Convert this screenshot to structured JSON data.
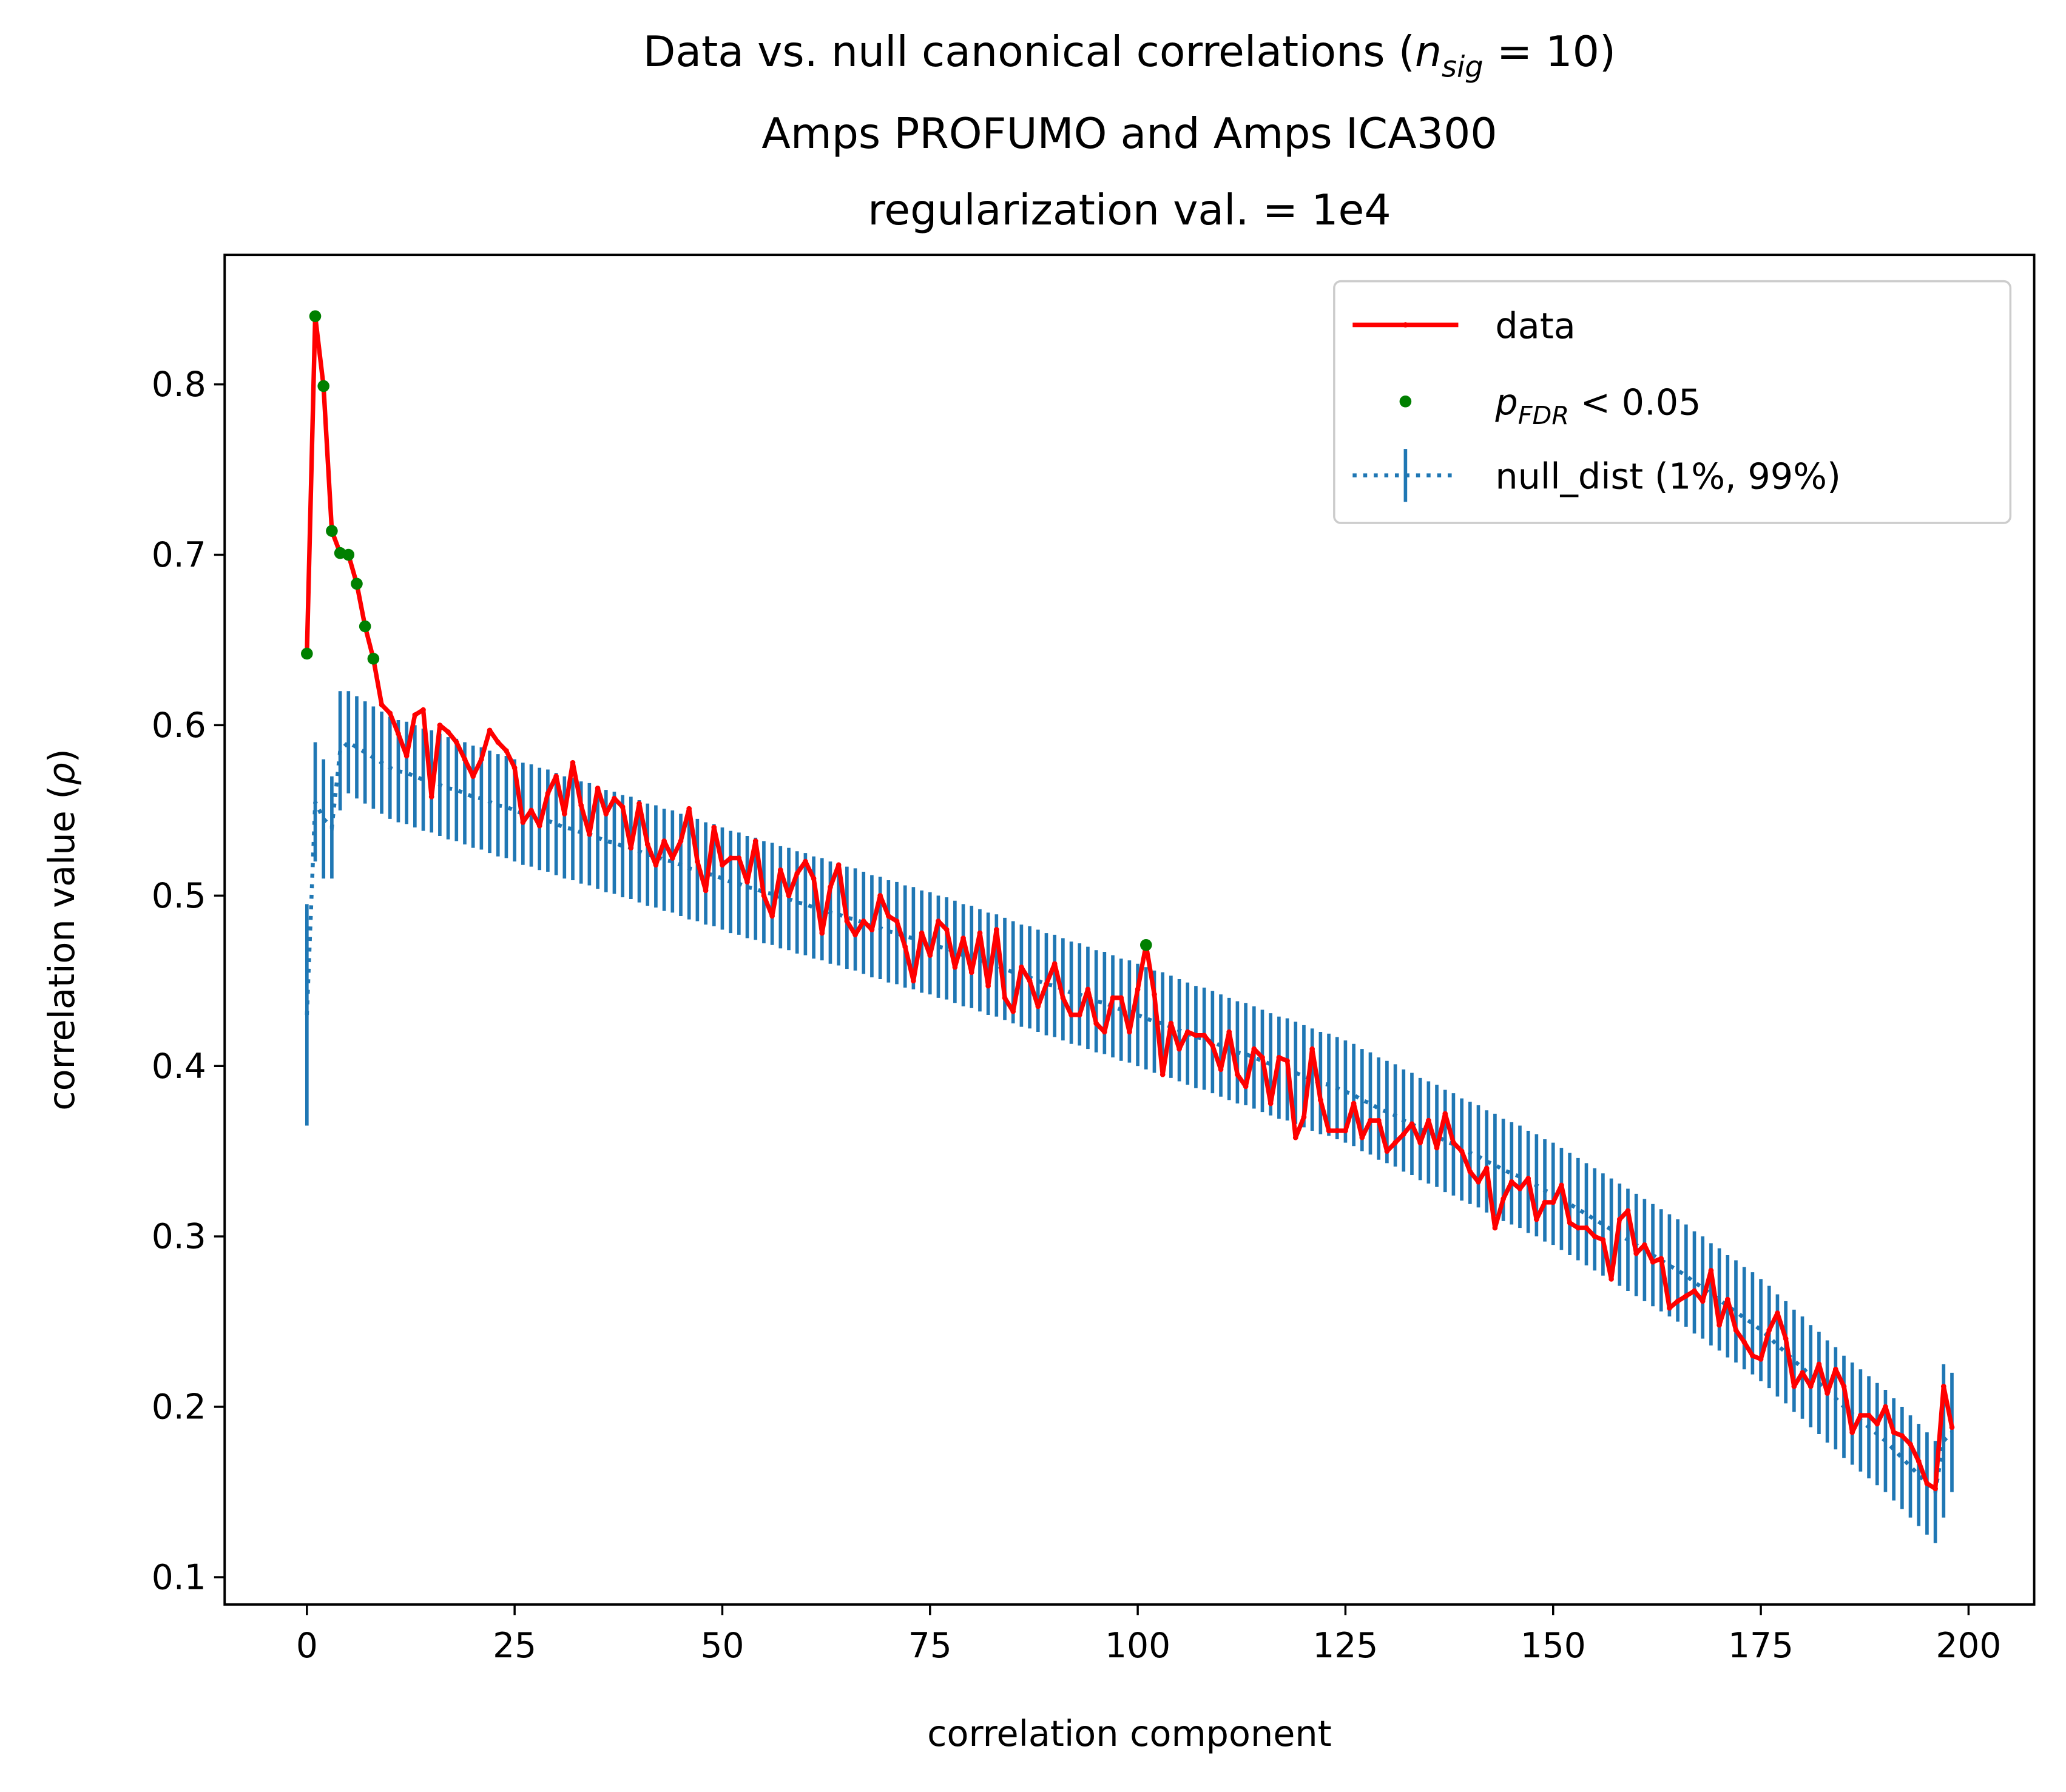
{
  "chart_data": {
    "type": "line",
    "title": {
      "line1": [
        "Data vs. null canonical correlations (",
        "n",
        "sig",
        " = 10)"
      ],
      "line2": "Amps PROFUMO and Amps ICA300",
      "line3": "regularization val. = 1e4"
    },
    "xlabel": "correlation component",
    "ylabel": [
      "correlation value (",
      "ρ",
      ")"
    ],
    "xlim": [
      -9.9,
      207.9
    ],
    "ylim": [
      0.084,
      0.876
    ],
    "xticks": [
      0,
      25,
      50,
      75,
      100,
      125,
      150,
      175,
      200
    ],
    "yticks": [
      0.1,
      0.2,
      0.3,
      0.4,
      0.5,
      0.6,
      0.7,
      0.8
    ],
    "legend": "upper right",
    "x": [
      0,
      1,
      2,
      3,
      4,
      5,
      6,
      7,
      8,
      9,
      10,
      11,
      12,
      13,
      14,
      15,
      16,
      17,
      18,
      19,
      20,
      21,
      22,
      23,
      24,
      25,
      26,
      27,
      28,
      29,
      30,
      31,
      32,
      33,
      34,
      35,
      36,
      37,
      38,
      39,
      40,
      41,
      42,
      43,
      44,
      45,
      46,
      47,
      48,
      49,
      50,
      51,
      52,
      53,
      54,
      55,
      56,
      57,
      58,
      59,
      60,
      61,
      62,
      63,
      64,
      65,
      66,
      67,
      68,
      69,
      70,
      71,
      72,
      73,
      74,
      75,
      76,
      77,
      78,
      79,
      80,
      81,
      82,
      83,
      84,
      85,
      86,
      87,
      88,
      89,
      90,
      91,
      92,
      93,
      94,
      95,
      96,
      97,
      98,
      99,
      100,
      101,
      102,
      103,
      104,
      105,
      106,
      107,
      108,
      109,
      110,
      111,
      112,
      113,
      114,
      115,
      116,
      117,
      118,
      119,
      120,
      121,
      122,
      123,
      124,
      125,
      126,
      127,
      128,
      129,
      130,
      131,
      132,
      133,
      134,
      135,
      136,
      137,
      138,
      139,
      140,
      141,
      142,
      143,
      144,
      145,
      146,
      147,
      148,
      149,
      150,
      151,
      152,
      153,
      154,
      155,
      156,
      157,
      158,
      159,
      160,
      161,
      162,
      163,
      164,
      165,
      166,
      167,
      168,
      169,
      170,
      171,
      172,
      173,
      174,
      175,
      176,
      177,
      178,
      179,
      180,
      181,
      182,
      183,
      184,
      185,
      186,
      187,
      188,
      189,
      190,
      191,
      192,
      193,
      194,
      195,
      196,
      197,
      198
    ],
    "series": [
      {
        "name": "data",
        "color": "#ff0000",
        "values": [
          0.642,
          0.84,
          0.799,
          0.714,
          0.701,
          0.7,
          0.683,
          0.658,
          0.639,
          0.612,
          0.607,
          0.595,
          0.582,
          0.606,
          0.609,
          0.558,
          0.6,
          0.596,
          0.59,
          0.58,
          0.57,
          0.58,
          0.597,
          0.59,
          0.585,
          0.575,
          0.543,
          0.55,
          0.541,
          0.56,
          0.57,
          0.548,
          0.578,
          0.553,
          0.536,
          0.563,
          0.548,
          0.557,
          0.552,
          0.528,
          0.554,
          0.53,
          0.518,
          0.532,
          0.522,
          0.532,
          0.551,
          0.52,
          0.503,
          0.54,
          0.518,
          0.522,
          0.522,
          0.508,
          0.532,
          0.5,
          0.488,
          0.515,
          0.5,
          0.513,
          0.52,
          0.51,
          0.478,
          0.505,
          0.518,
          0.485,
          0.477,
          0.485,
          0.48,
          0.5,
          0.488,
          0.485,
          0.47,
          0.45,
          0.478,
          0.465,
          0.485,
          0.48,
          0.458,
          0.475,
          0.455,
          0.478,
          0.447,
          0.48,
          0.44,
          0.432,
          0.458,
          0.45,
          0.435,
          0.448,
          0.46,
          0.44,
          0.43,
          0.43,
          0.445,
          0.425,
          0.42,
          0.44,
          0.44,
          0.42,
          0.445,
          0.471,
          0.442,
          0.395,
          0.425,
          0.41,
          0.42,
          0.418,
          0.418,
          0.412,
          0.398,
          0.42,
          0.395,
          0.388,
          0.41,
          0.405,
          0.378,
          0.405,
          0.403,
          0.358,
          0.37,
          0.41,
          0.38,
          0.362,
          0.362,
          0.362,
          0.378,
          0.358,
          0.368,
          0.368,
          0.35,
          0.355,
          0.36,
          0.366,
          0.355,
          0.368,
          0.352,
          0.372,
          0.355,
          0.35,
          0.338,
          0.332,
          0.34,
          0.305,
          0.322,
          0.332,
          0.328,
          0.334,
          0.31,
          0.32,
          0.32,
          0.33,
          0.308,
          0.305,
          0.305,
          0.3,
          0.298,
          0.275,
          0.31,
          0.315,
          0.29,
          0.295,
          0.285,
          0.287,
          0.258,
          0.262,
          0.265,
          0.268,
          0.262,
          0.28,
          0.248,
          0.263,
          0.245,
          0.238,
          0.23,
          0.228,
          0.245,
          0.255,
          0.24,
          0.212,
          0.22,
          0.212,
          0.225,
          0.208,
          0.222,
          0.212,
          0.185,
          0.195,
          0.195,
          0.19,
          0.2,
          0.185,
          0.183,
          0.178,
          0.168,
          0.155,
          0.152,
          0.212,
          0.188
        ]
      }
    ],
    "significant": {
      "name": [
        "p",
        "FDR",
        " < 0.05"
      ],
      "color": "#008000",
      "x": [
        0,
        1,
        2,
        3,
        4,
        5,
        6,
        7,
        8,
        101
      ],
      "values": [
        0.642,
        0.84,
        0.799,
        0.714,
        0.701,
        0.7,
        0.683,
        0.658,
        0.639,
        0.471
      ]
    },
    "null_dist": {
      "name": "null_dist (1%, 99%)",
      "color": "#1f77b4",
      "values": [
        0.43,
        0.555,
        0.545,
        0.54,
        0.585,
        0.59,
        0.587,
        0.584,
        0.581,
        0.578,
        0.575,
        0.573,
        0.572,
        0.57,
        0.568,
        0.567,
        0.565,
        0.563,
        0.562,
        0.56,
        0.558,
        0.557,
        0.555,
        0.553,
        0.552,
        0.55,
        0.548,
        0.547,
        0.545,
        0.544,
        0.542,
        0.54,
        0.539,
        0.537,
        0.536,
        0.534,
        0.532,
        0.531,
        0.529,
        0.528,
        0.526,
        0.524,
        0.523,
        0.521,
        0.52,
        0.518,
        0.516,
        0.515,
        0.513,
        0.512,
        0.51,
        0.508,
        0.507,
        0.505,
        0.504,
        0.502,
        0.501,
        0.499,
        0.498,
        0.496,
        0.495,
        0.493,
        0.492,
        0.49,
        0.489,
        0.487,
        0.486,
        0.484,
        0.482,
        0.481,
        0.479,
        0.478,
        0.476,
        0.475,
        0.473,
        0.472,
        0.47,
        0.469,
        0.467,
        0.465,
        0.464,
        0.462,
        0.46,
        0.459,
        0.457,
        0.455,
        0.453,
        0.452,
        0.45,
        0.448,
        0.447,
        0.445,
        0.443,
        0.442,
        0.44,
        0.438,
        0.437,
        0.435,
        0.433,
        0.432,
        0.43,
        0.428,
        0.426,
        0.425,
        0.423,
        0.421,
        0.419,
        0.417,
        0.416,
        0.414,
        0.412,
        0.41,
        0.408,
        0.407,
        0.405,
        0.403,
        0.401,
        0.399,
        0.398,
        0.396,
        0.394,
        0.392,
        0.39,
        0.389,
        0.387,
        0.385,
        0.383,
        0.38,
        0.378,
        0.375,
        0.373,
        0.371,
        0.368,
        0.366,
        0.363,
        0.361,
        0.359,
        0.356,
        0.354,
        0.351,
        0.349,
        0.347,
        0.344,
        0.342,
        0.339,
        0.337,
        0.335,
        0.332,
        0.33,
        0.327,
        0.325,
        0.322,
        0.319,
        0.316,
        0.313,
        0.31,
        0.307,
        0.304,
        0.301,
        0.298,
        0.295,
        0.292,
        0.289,
        0.286,
        0.283,
        0.28,
        0.277,
        0.273,
        0.27,
        0.266,
        0.263,
        0.259,
        0.256,
        0.252,
        0.249,
        0.245,
        0.241,
        0.236,
        0.232,
        0.227,
        0.223,
        0.218,
        0.214,
        0.209,
        0.205,
        0.2,
        0.196,
        0.192,
        0.188,
        0.184,
        0.18,
        0.175,
        0.17,
        0.165,
        0.16,
        0.155,
        0.15,
        0.18,
        0.185
      ],
      "errors": [
        0.065,
        0.035,
        0.035,
        0.03,
        0.035,
        0.03,
        0.03,
        0.03,
        0.03,
        0.03,
        0.03,
        0.03,
        0.03,
        0.03,
        0.03,
        0.03,
        0.03,
        0.03,
        0.03,
        0.03,
        0.03,
        0.03,
        0.03,
        0.03,
        0.03,
        0.03,
        0.03,
        0.03,
        0.03,
        0.03,
        0.03,
        0.03,
        0.03,
        0.03,
        0.03,
        0.03,
        0.03,
        0.03,
        0.03,
        0.03,
        0.03,
        0.03,
        0.03,
        0.03,
        0.03,
        0.03,
        0.03,
        0.03,
        0.03,
        0.03,
        0.03,
        0.03,
        0.03,
        0.03,
        0.03,
        0.03,
        0.03,
        0.03,
        0.03,
        0.03,
        0.03,
        0.03,
        0.03,
        0.03,
        0.03,
        0.03,
        0.03,
        0.03,
        0.03,
        0.03,
        0.03,
        0.03,
        0.03,
        0.03,
        0.03,
        0.03,
        0.03,
        0.03,
        0.03,
        0.03,
        0.03,
        0.03,
        0.03,
        0.03,
        0.03,
        0.03,
        0.03,
        0.03,
        0.03,
        0.03,
        0.03,
        0.03,
        0.03,
        0.03,
        0.03,
        0.03,
        0.03,
        0.03,
        0.03,
        0.03,
        0.03,
        0.03,
        0.03,
        0.03,
        0.03,
        0.03,
        0.03,
        0.03,
        0.03,
        0.03,
        0.03,
        0.03,
        0.03,
        0.03,
        0.03,
        0.03,
        0.03,
        0.03,
        0.03,
        0.03,
        0.03,
        0.03,
        0.03,
        0.03,
        0.03,
        0.03,
        0.03,
        0.03,
        0.03,
        0.03,
        0.03,
        0.03,
        0.03,
        0.03,
        0.03,
        0.03,
        0.03,
        0.03,
        0.03,
        0.03,
        0.03,
        0.03,
        0.03,
        0.03,
        0.03,
        0.03,
        0.03,
        0.03,
        0.03,
        0.03,
        0.03,
        0.03,
        0.03,
        0.03,
        0.03,
        0.03,
        0.03,
        0.03,
        0.03,
        0.03,
        0.03,
        0.03,
        0.03,
        0.03,
        0.03,
        0.03,
        0.03,
        0.03,
        0.03,
        0.03,
        0.03,
        0.03,
        0.03,
        0.03,
        0.03,
        0.03,
        0.03,
        0.03,
        0.03,
        0.03,
        0.03,
        0.03,
        0.03,
        0.03,
        0.03,
        0.03,
        0.03,
        0.03,
        0.03,
        0.03,
        0.03,
        0.03,
        0.03,
        0.03,
        0.03,
        0.03,
        0.03,
        0.045,
        0.035
      ]
    }
  }
}
